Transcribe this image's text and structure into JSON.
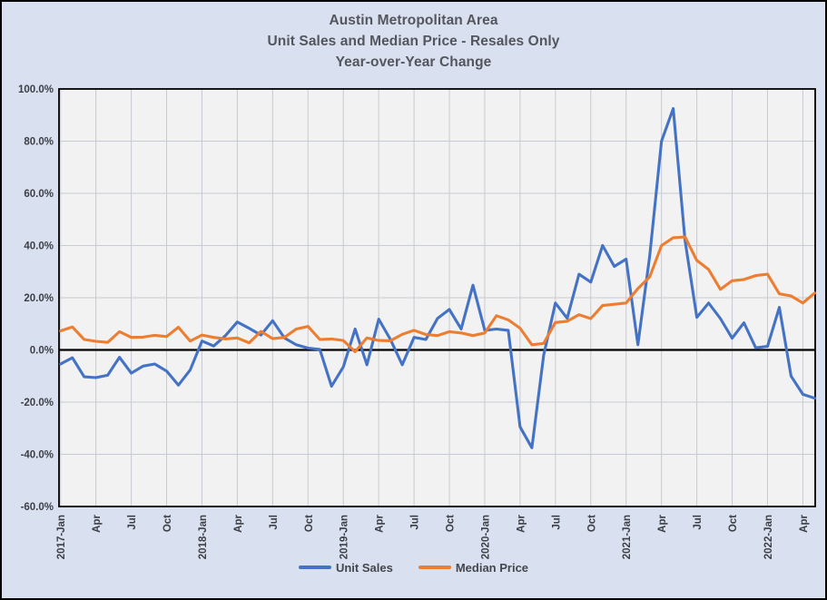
{
  "chart_data": {
    "type": "line",
    "title_lines": [
      "Austin Metropolitan Area",
      "Unit Sales and Median Price - Resales Only",
      "Year-over-Year Change"
    ],
    "categories": [
      "2017-Jan",
      "2017-Feb",
      "2017-Mar",
      "2017-Apr",
      "2017-May",
      "2017-Jun",
      "2017-Jul",
      "2017-Aug",
      "2017-Sep",
      "2017-Oct",
      "2017-Nov",
      "2017-Dec",
      "2018-Jan",
      "2018-Feb",
      "2018-Mar",
      "2018-Apr",
      "2018-May",
      "2018-Jun",
      "2018-Jul",
      "2018-Aug",
      "2018-Sep",
      "2018-Oct",
      "2018-Nov",
      "2018-Dec",
      "2019-Jan",
      "2019-Feb",
      "2019-Mar",
      "2019-Apr",
      "2019-May",
      "2019-Jun",
      "2019-Jul",
      "2019-Aug",
      "2019-Sep",
      "2019-Oct",
      "2019-Nov",
      "2019-Dec",
      "2020-Jan",
      "2020-Feb",
      "2020-Mar",
      "2020-Apr",
      "2020-May",
      "2020-Jun",
      "2020-Jul",
      "2020-Aug",
      "2020-Sep",
      "2020-Oct",
      "2020-Nov",
      "2020-Dec",
      "2021-Jan",
      "2021-Feb",
      "2021-Mar",
      "2021-Apr",
      "2021-May",
      "2021-Jun",
      "2021-Jul",
      "2021-Aug",
      "2021-Sep",
      "2021-Oct",
      "2021-Nov",
      "2021-Dec",
      "2022-Jan",
      "2022-Feb",
      "2022-Mar",
      "2022-Apr",
      "2022-May"
    ],
    "series": [
      {
        "name": "Unit Sales",
        "color": "#4472c4",
        "values": [
          -5.4,
          -3.0,
          -10.3,
          -10.6,
          -9.7,
          -2.8,
          -8.9,
          -6.2,
          -5.4,
          -8.1,
          -13.5,
          -7.7,
          3.4,
          1.5,
          5.5,
          10.7,
          8.3,
          5.7,
          11.2,
          4.6,
          2.0,
          0.7,
          0.2,
          -13.9,
          -6.5,
          8.0,
          -5.7,
          11.8,
          4.0,
          -5.7,
          4.8,
          4.0,
          12.1,
          15.5,
          8.0,
          24.8,
          7.5,
          8.0,
          7.5,
          -29.5,
          -37.5,
          -2.0,
          18.0,
          12.1,
          29.0,
          26.0,
          40.0,
          32.0,
          34.8,
          2.0,
          36.0,
          80.0,
          92.5,
          42.0,
          12.5,
          18.0,
          12.0,
          4.5,
          10.4,
          0.8,
          1.4,
          16.3,
          -10.0,
          -17.0,
          -18.5
        ]
      },
      {
        "name": "Median Price",
        "color": "#ed7d31",
        "values": [
          7.3,
          8.8,
          4.0,
          3.3,
          2.9,
          7.0,
          4.8,
          4.9,
          5.6,
          5.1,
          8.7,
          3.4,
          5.7,
          4.8,
          4.2,
          4.6,
          2.7,
          7.1,
          4.3,
          4.8,
          8.0,
          9.0,
          4.0,
          4.2,
          3.6,
          -0.7,
          4.6,
          3.6,
          3.5,
          6.0,
          7.5,
          5.9,
          5.5,
          7.0,
          6.5,
          5.5,
          6.5,
          13.1,
          11.5,
          8.3,
          2.0,
          2.5,
          10.5,
          11.0,
          13.5,
          12.0,
          17.0,
          17.5,
          18.0,
          23.5,
          28.0,
          40.0,
          43.0,
          43.3,
          34.3,
          30.8,
          23.2,
          26.5,
          27.0,
          28.5,
          29.0,
          21.5,
          20.7,
          18.0,
          21.8
        ]
      }
    ],
    "ylim": [
      -60,
      100
    ],
    "yticks": [
      {
        "value": 100,
        "label": "100.0%"
      },
      {
        "value": 80,
        "label": "80.0%"
      },
      {
        "value": 60,
        "label": "60.0%"
      },
      {
        "value": 40,
        "label": "40.0%"
      },
      {
        "value": 20,
        "label": "20.0%"
      },
      {
        "value": 0,
        "label": "0.0%"
      },
      {
        "value": -20,
        "label": "-20.0%"
      },
      {
        "value": -40,
        "label": "-40.0%"
      },
      {
        "value": -60,
        "label": "-60.0%"
      }
    ],
    "xticks": [
      {
        "index": 0,
        "label": "2017-Jan"
      },
      {
        "index": 3,
        "label": "Apr"
      },
      {
        "index": 6,
        "label": "Jul"
      },
      {
        "index": 9,
        "label": "Oct"
      },
      {
        "index": 12,
        "label": "2018-Jan"
      },
      {
        "index": 15,
        "label": "Apr"
      },
      {
        "index": 18,
        "label": "Jul"
      },
      {
        "index": 21,
        "label": "Oct"
      },
      {
        "index": 24,
        "label": "2019-Jan"
      },
      {
        "index": 27,
        "label": "Apr"
      },
      {
        "index": 30,
        "label": "Jul"
      },
      {
        "index": 33,
        "label": "Oct"
      },
      {
        "index": 36,
        "label": "2020-Jan"
      },
      {
        "index": 39,
        "label": "Apr"
      },
      {
        "index": 42,
        "label": "Jul"
      },
      {
        "index": 45,
        "label": "Oct"
      },
      {
        "index": 48,
        "label": "2021-Jan"
      },
      {
        "index": 51,
        "label": "Apr"
      },
      {
        "index": 54,
        "label": "Jul"
      },
      {
        "index": 57,
        "label": "Oct"
      },
      {
        "index": 60,
        "label": "2022-Jan"
      },
      {
        "index": 63,
        "label": "Apr"
      }
    ],
    "grid": true,
    "legend_position": "bottom",
    "zero_line": true
  },
  "colors": {
    "canvas_background": "#d9e1f0",
    "plot_background": "#f2f2f2",
    "gridline": "#c6cad1",
    "axis_frame": "#000000",
    "zero_line": "#000000",
    "title_text": "#54565e",
    "tick_text": "#3d3f45",
    "unit_sales": "#4472c4",
    "median_price": "#ed7d31"
  }
}
